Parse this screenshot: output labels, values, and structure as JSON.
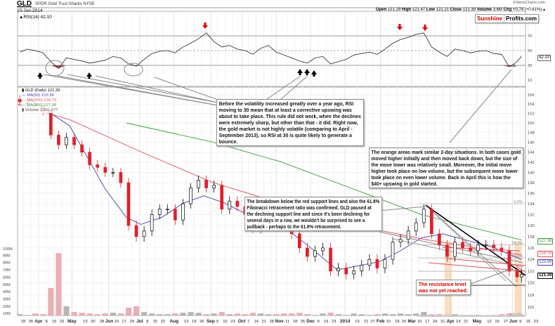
{
  "header": {
    "symbol": "GLD",
    "name": "SPDR Gold Trust Shares NYSE",
    "date": "10-Jun-2014",
    "copyright": "©StockCharts.com",
    "open_label": "Open",
    "open": "121.29",
    "high_label": "High",
    "high": "121.47",
    "low_label": "Low",
    "low": "121.21",
    "close_label": "Close",
    "close": "121.39",
    "volume_label": "Volume",
    "volume": "3.6M",
    "chg_label": "Chg",
    "chg": "+0.74 (+0.61%)"
  },
  "logo": {
    "part1": "Sunshine",
    "part2": "Profits.com"
  },
  "legend": {
    "price": "GLD (Daily) 121.39",
    "ma50": "MA(50) 123.99",
    "ma200": "MA(200) 124.79",
    "ma300": "MA(300) 127.38",
    "volume": "Volume 3,561,677"
  },
  "rsi_label": "RSI(14) 42.10",
  "value_boxes": {
    "rsi": "42.10",
    "ma300": "127.38",
    "ma200": "124.79",
    "ma50": "123.99",
    "close": "121.39"
  },
  "notes": {
    "rsi_note": [
      "Before the volatility increased greatly over a year ago, RSI",
      "moving to 30 mean that at least a corrective upswing was",
      "about to take place. This rule did not work, when the declines",
      "were extremely sharp, but other than that - it did. Right now,",
      "the gold market is not highly volatile (comparing to April -",
      "September 2013), so RSI at 30 is quite likely to generate a",
      "bounce."
    ],
    "orange_note": [
      "The orange areas mark similar 2-day situations. In both cases gold",
      "moved higher initially and then moved back down, but the size of",
      "the move lower was relatively small. Moreover, the initial move",
      "higher took place on low volume, but the subsequent move lower",
      "took place on even lower volume. Back in April this is how the",
      "$40+ upswing in gold started."
    ],
    "breakdown_note": [
      "The breakdown below the red support lines and also the 61.8%",
      "Fibonacci retracement ratio was confirmed. GLD paused at",
      "the declining support line and since it's been declining for",
      "several days in a row, we wouldn't be surprised to see a",
      "pullback - perhaps to the 61.8% retracement."
    ],
    "resistance_note": [
      "The resistance level",
      "was not yet reached."
    ]
  },
  "colors": {
    "ma50": "#4040b0",
    "ma200": "#e05060",
    "ma300": "#3a9a3a",
    "down": "#e0202a",
    "up": "#000000",
    "vol_down": "#e8a0a8",
    "vol_up": "#a8a8a8",
    "rsi_fill": "#a05555",
    "orange": "#f5c89a",
    "logo_red": "#d00000"
  },
  "chart_data": {
    "type": "candlestick",
    "title": "GLD SPDR Gold Trust Shares NYSE",
    "price_axis": {
      "ticks": [
        156,
        154,
        152,
        150,
        148,
        146,
        144,
        142,
        140,
        138,
        136,
        134,
        132,
        130,
        128,
        126,
        124,
        122,
        120,
        118,
        116
      ],
      "scale": "log",
      "ylim": [
        114,
        157
      ]
    },
    "rsi_axis": {
      "ticks": [
        90,
        70,
        50,
        30,
        10
      ],
      "ylim": [
        0,
        100
      ],
      "lines": [
        70,
        50,
        30
      ]
    },
    "volume_axis": {
      "ticks": [
        "100M",
        "90M",
        "80M",
        "70M",
        "60M",
        "50M",
        "40M",
        "30M",
        "20M",
        "10M"
      ],
      "tick_values": [
        100,
        90,
        80,
        70,
        60,
        50,
        40,
        30,
        20,
        10
      ]
    },
    "x_ticks": [
      [
        "18",
        "2013-03-18",
        0
      ],
      [
        "25",
        "2013-03-25",
        0
      ],
      [
        "Apr",
        "2013-04-01",
        1
      ],
      [
        "8",
        "2013-04-08",
        0
      ],
      [
        "15",
        "2013-04-15",
        0
      ],
      [
        "22",
        "2013-04-22",
        0
      ],
      [
        "May",
        "2013-05-01",
        1
      ],
      [
        "13",
        "2013-05-13",
        0
      ],
      [
        "20",
        "2013-05-20",
        0
      ],
      [
        "28",
        "2013-05-28",
        0
      ],
      [
        "Jun",
        "2013-06-03",
        1
      ],
      [
        "10",
        "2013-06-10",
        0
      ],
      [
        "17",
        "2013-06-17",
        0
      ],
      [
        "24",
        "2013-06-24",
        0
      ],
      [
        "Jul",
        "2013-07-01",
        1
      ],
      [
        "8",
        "2013-07-08",
        0
      ],
      [
        "15",
        "2013-07-15",
        0
      ],
      [
        "22",
        "2013-07-22",
        0
      ],
      [
        "Aug",
        "2013-08-01",
        1
      ],
      [
        "12",
        "2013-08-12",
        0
      ],
      [
        "19",
        "2013-08-19",
        0
      ],
      [
        "26",
        "2013-08-26",
        0
      ],
      [
        "Sep",
        "2013-09-03",
        1
      ],
      [
        "9",
        "2013-09-09",
        0
      ],
      [
        "16",
        "2013-09-16",
        0
      ],
      [
        "23",
        "2013-09-23",
        0
      ],
      [
        "Oct",
        "2013-10-01",
        1
      ],
      [
        "7",
        "2013-10-07",
        0
      ],
      [
        "14",
        "2013-10-14",
        0
      ],
      [
        "21",
        "2013-10-21",
        0
      ],
      [
        "28",
        "2013-10-28",
        0
      ],
      [
        "Nov",
        "2013-11-01",
        1
      ],
      [
        "11",
        "2013-11-11",
        0
      ],
      [
        "18",
        "2013-11-18",
        0
      ],
      [
        "25",
        "2013-11-25",
        0
      ],
      [
        "Dec",
        "2013-12-02",
        1
      ],
      [
        "9",
        "2013-12-09",
        0
      ],
      [
        "16",
        "2013-12-16",
        0
      ],
      [
        "23",
        "2013-12-23",
        0
      ],
      [
        "2014",
        "2014-01-02",
        1
      ],
      [
        "13",
        "2014-01-13",
        0
      ],
      [
        "21",
        "2014-01-21",
        0
      ],
      [
        "27",
        "2014-01-27",
        0
      ],
      [
        "Feb",
        "2014-02-03",
        1
      ],
      [
        "10",
        "2014-02-10",
        0
      ],
      [
        "18",
        "2014-02-18",
        0
      ],
      [
        "24",
        "2014-02-24",
        0
      ],
      [
        "Mar",
        "2014-03-03",
        1
      ],
      [
        "10",
        "2014-03-10",
        0
      ],
      [
        "17",
        "2014-03-17",
        0
      ],
      [
        "24",
        "2014-03-24",
        0
      ],
      [
        "31",
        "2014-03-31",
        0
      ],
      [
        "Apr",
        "2014-04-07",
        1
      ],
      [
        "14",
        "2014-04-14",
        0
      ],
      [
        "21",
        "2014-04-21",
        0
      ],
      [
        "May",
        "2014-05-01",
        1
      ],
      [
        "12",
        "2014-05-12",
        0
      ],
      [
        "19",
        "2014-05-19",
        0
      ],
      [
        "27",
        "2014-05-27",
        0
      ],
      [
        "Jun",
        "2014-06-02",
        1
      ],
      [
        "9",
        "2014-06-09",
        0
      ],
      [
        "16",
        "2014-06-16",
        0
      ],
      [
        "23",
        "2014-06-23",
        0
      ]
    ],
    "dates": [
      "2013-03-15",
      "2013-03-22",
      "2013-03-29",
      "2013-04-05",
      "2013-04-12",
      "2013-04-19",
      "2013-04-26",
      "2013-05-03",
      "2013-05-10",
      "2013-05-17",
      "2013-05-24",
      "2013-05-31",
      "2013-06-07",
      "2013-06-14",
      "2013-06-21",
      "2013-06-28",
      "2013-07-05",
      "2013-07-12",
      "2013-07-19",
      "2013-07-26",
      "2013-08-02",
      "2013-08-09",
      "2013-08-16",
      "2013-08-23",
      "2013-08-30",
      "2013-09-06",
      "2013-09-13",
      "2013-09-20",
      "2013-09-27",
      "2013-10-04",
      "2013-10-11",
      "2013-10-18",
      "2013-10-25",
      "2013-11-01",
      "2013-11-08",
      "2013-11-15",
      "2013-11-22",
      "2013-11-29",
      "2013-12-06",
      "2013-12-13",
      "2013-12-20",
      "2013-12-27",
      "2014-01-03",
      "2014-01-10",
      "2014-01-17",
      "2014-01-24",
      "2014-01-31",
      "2014-02-07",
      "2014-02-14",
      "2014-02-21",
      "2014-02-28",
      "2014-03-07",
      "2014-03-14",
      "2014-03-21",
      "2014-03-28",
      "2014-04-04",
      "2014-04-11",
      "2014-04-18",
      "2014-04-25",
      "2014-05-02",
      "2014-05-09",
      "2014-05-16",
      "2014-05-23",
      "2014-05-30",
      "2014-06-06",
      "2014-06-10"
    ],
    "close": [
      154.5,
      154,
      153.7,
      152.5,
      147.5,
      145.5,
      147,
      145.5,
      144,
      141.5,
      141,
      140,
      140,
      138,
      130,
      128,
      129,
      132,
      133,
      133,
      131,
      134,
      137,
      138.5,
      137,
      137.5,
      133,
      134.5,
      133.5,
      132,
      129.5,
      132.5,
      134,
      130.5,
      130,
      128.5,
      126,
      124.5,
      125.5,
      126,
      122,
      122.5,
      121.5,
      122,
      123,
      124,
      122.5,
      124,
      127,
      127.5,
      129,
      130.5,
      133,
      128.5,
      126.5,
      124.5,
      127,
      126,
      125.5,
      126.5,
      126.5,
      126,
      125.5,
      122,
      121,
      121.39
    ],
    "volume_millions": [
      9,
      8,
      10,
      9,
      45,
      93,
      20,
      12,
      11,
      10,
      9,
      10,
      11,
      10,
      18,
      20,
      12,
      10,
      9,
      9,
      10,
      11,
      12,
      11,
      9,
      10,
      12,
      9,
      10,
      9,
      11,
      10,
      9,
      9,
      10,
      10,
      11,
      9,
      8,
      10,
      11,
      9,
      8,
      10,
      9,
      8,
      9,
      10,
      9,
      10,
      9,
      10,
      12,
      9,
      9,
      8,
      9,
      8,
      8,
      8,
      7,
      8,
      9,
      10,
      8,
      3.6
    ],
    "rsi": [
      48,
      52,
      50,
      47,
      35,
      26,
      40,
      38,
      36,
      33,
      35,
      37,
      42,
      40,
      32,
      29,
      38,
      46,
      49,
      50,
      47,
      55,
      60,
      66,
      74,
      62,
      55,
      57,
      52,
      50,
      45,
      53,
      57,
      48,
      44,
      40,
      36,
      33,
      40,
      42,
      32,
      35,
      38,
      44,
      46,
      48,
      45,
      52,
      60,
      65,
      68,
      72,
      74,
      55,
      48,
      42,
      52,
      50,
      47,
      49,
      50,
      46,
      45,
      28,
      35,
      42.1
    ],
    "ma50": [
      [
        "2013-03-22",
        155.3
      ],
      [
        "2013-04-29",
        149.4
      ],
      [
        "2013-05-31",
        136.8
      ],
      [
        "2013-06-19",
        131.5
      ],
      [
        "2013-07-02",
        130.2
      ],
      [
        "2013-07-21",
        131.5
      ],
      [
        "2013-08-09",
        134.1
      ],
      [
        "2013-08-28",
        135.5
      ],
      [
        "2013-09-16",
        134.1
      ],
      [
        "2013-10-11",
        131.5
      ],
      [
        "2013-11-05",
        130.2
      ],
      [
        "2013-12-01",
        126.2
      ],
      [
        "2013-12-26",
        122.2
      ],
      [
        "2014-01-14",
        122.9
      ],
      [
        "2014-02-02",
        123.6
      ],
      [
        "2014-02-21",
        125.5
      ],
      [
        "2014-03-12",
        127.8
      ],
      [
        "2014-03-31",
        128.5
      ],
      [
        "2014-04-19",
        127.5
      ],
      [
        "2014-05-14",
        126.2
      ],
      [
        "2014-06-10",
        123.99
      ]
    ],
    "ma200": [
      [
        "2013-03-13",
        154
      ],
      [
        "2013-04-29",
        150.7
      ],
      [
        "2013-07-02",
        144.1
      ],
      [
        "2013-09-04",
        138.1
      ],
      [
        "2013-11-05",
        134.1
      ],
      [
        "2014-01-07",
        130.2
      ],
      [
        "2014-03-12",
        127.6
      ],
      [
        "2014-06-10",
        124.79
      ]
    ],
    "ma300": [
      [
        "2013-06-19",
        150
      ],
      [
        "2013-09-04",
        146.1
      ],
      [
        "2013-11-05",
        142.1
      ],
      [
        "2014-01-07",
        137
      ],
      [
        "2014-03-12",
        132
      ],
      [
        "2014-06-10",
        127.38
      ]
    ],
    "fibonacci": {
      "high": 134,
      "low": 114.5,
      "levels": [
        [
          "0.0%",
          134
        ],
        [
          "38.2%",
          126.55
        ],
        [
          "50.0%",
          124.25
        ],
        [
          "61.8%",
          121.95
        ],
        [
          "100.0%",
          114.5
        ]
      ]
    },
    "resistance_level": 119.5,
    "orange_areas": [
      [
        "2014-04-03",
        "2014-04-07"
      ],
      [
        "2014-06-05",
        "2014-06-09"
      ]
    ]
  }
}
